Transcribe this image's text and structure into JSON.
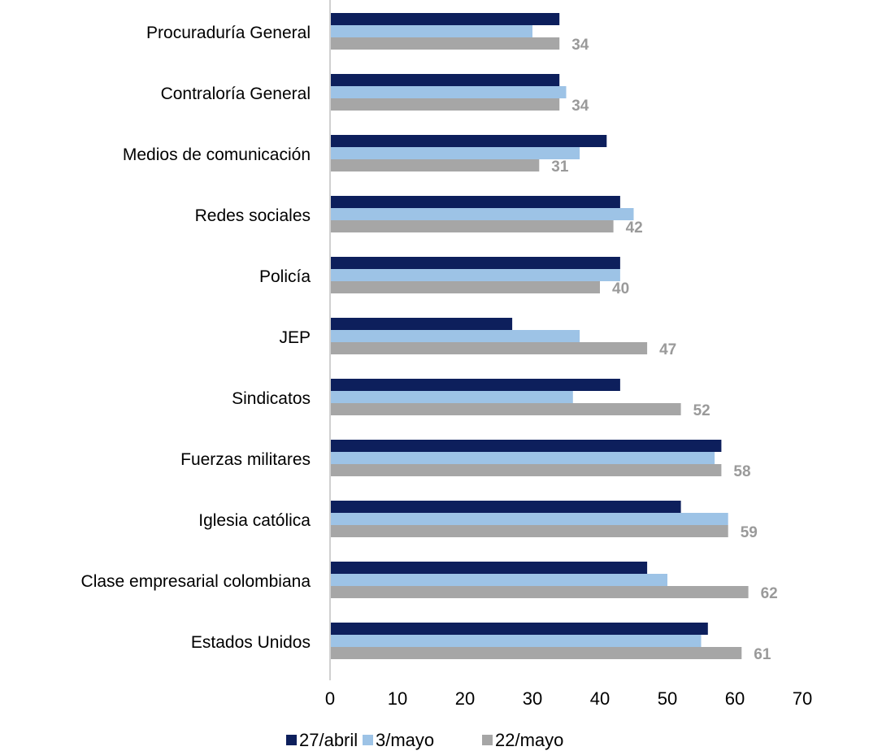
{
  "chart_data": {
    "type": "bar",
    "orientation": "horizontal",
    "categories": [
      "Procuraduría General",
      "Contraloría General",
      "Medios de comunicación",
      "Redes sociales",
      "Policía",
      "JEP",
      "Sindicatos",
      "Fuerzas militares",
      "Iglesia católica",
      "Clase empresarial colombiana",
      "Estados Unidos"
    ],
    "series": [
      {
        "name": "27/abril",
        "color": "#0d1f5c",
        "values": [
          34,
          34,
          41,
          43,
          43,
          27,
          43,
          58,
          52,
          47,
          56
        ]
      },
      {
        "name": "3/mayo",
        "color": "#9dc3e6",
        "values": [
          30,
          35,
          37,
          45,
          43,
          37,
          36,
          57,
          59,
          50,
          55
        ]
      },
      {
        "name": "22/mayo",
        "color": "#a6a6a6",
        "values": [
          34,
          34,
          31,
          42,
          40,
          47,
          52,
          58,
          59,
          62,
          61
        ]
      }
    ],
    "data_labels": [
      "34",
      "34",
      "31",
      "42",
      "40",
      "47",
      "52",
      "58",
      "59",
      "62",
      "61"
    ],
    "data_label_series": "22/mayo",
    "xlim": [
      0,
      70
    ],
    "xticks": [
      "0",
      "10",
      "20",
      "30",
      "40",
      "50",
      "60",
      "70"
    ],
    "grid": false,
    "legend_position": "bottom",
    "title": "",
    "xlabel": "",
    "ylabel": ""
  }
}
